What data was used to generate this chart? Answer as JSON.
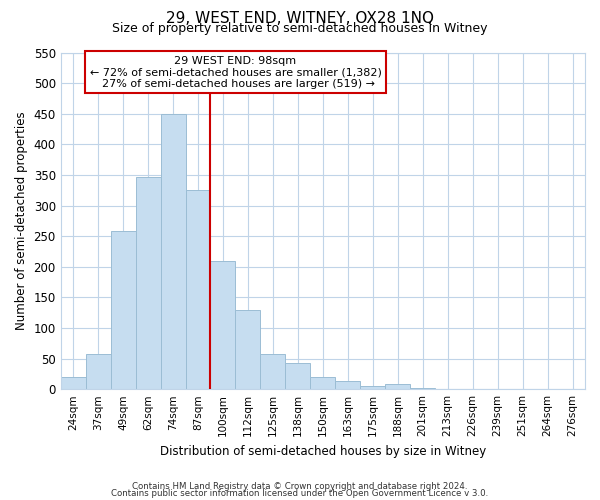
{
  "title": "29, WEST END, WITNEY, OX28 1NQ",
  "subtitle": "Size of property relative to semi-detached houses in Witney",
  "xlabel": "Distribution of semi-detached houses by size in Witney",
  "ylabel": "Number of semi-detached properties",
  "bar_color": "#c6ddf0",
  "bar_edge_color": "#9bbdd4",
  "background_color": "#ffffff",
  "grid_color": "#c0d4e8",
  "annotation_box_color": "#ffffff",
  "annotation_box_edge": "#cc0000",
  "vline_color": "#cc0000",
  "footer1": "Contains HM Land Registry data © Crown copyright and database right 2024.",
  "footer2": "Contains public sector information licensed under the Open Government Licence v 3.0.",
  "categories": [
    "24sqm",
    "37sqm",
    "49sqm",
    "62sqm",
    "74sqm",
    "87sqm",
    "100sqm",
    "112sqm",
    "125sqm",
    "138sqm",
    "150sqm",
    "163sqm",
    "175sqm",
    "188sqm",
    "201sqm",
    "213sqm",
    "226sqm",
    "239sqm",
    "251sqm",
    "264sqm",
    "276sqm"
  ],
  "values": [
    20,
    57,
    258,
    346,
    449,
    325,
    209,
    130,
    57,
    42,
    20,
    14,
    5,
    9,
    2,
    0,
    0,
    0,
    0,
    0,
    0
  ],
  "property_label": "29 WEST END: 98sqm",
  "pct_smaller": 72,
  "count_smaller": 1382,
  "pct_larger": 27,
  "count_larger": 519,
  "vline_index": 6,
  "ylim": [
    0,
    550
  ],
  "yticks": [
    0,
    50,
    100,
    150,
    200,
    250,
    300,
    350,
    400,
    450,
    500,
    550
  ]
}
